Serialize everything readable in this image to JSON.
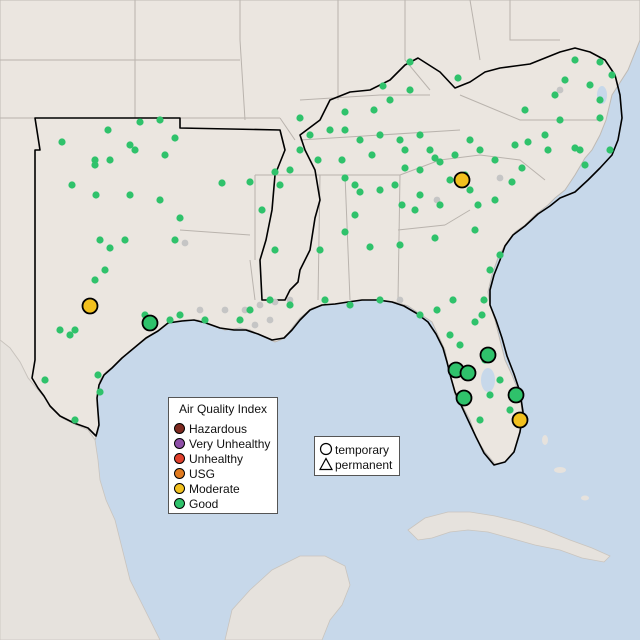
{
  "map": {
    "colors": {
      "water": "#c7d8ea",
      "land": "#ebe6e0",
      "region_outline": "#000000",
      "state_border": "#b9b3ad",
      "other_land": "#e3e0dc"
    }
  },
  "legend_aqi": {
    "title": "Air Quality Index",
    "items": [
      {
        "label": "Hazardous",
        "color": "#7e2a20"
      },
      {
        "label": "Very Unhealthy",
        "color": "#8e4fa8"
      },
      {
        "label": "Unhealthy",
        "color": "#e0402c"
      },
      {
        "label": "USG",
        "color": "#e07a1f"
      },
      {
        "label": "Moderate",
        "color": "#f2c01e"
      },
      {
        "label": "Good",
        "color": "#2fc26b"
      }
    ]
  },
  "legend_type": {
    "items": [
      {
        "label": "temporary",
        "shape": "circle-icon"
      },
      {
        "label": "permanent",
        "shape": "triangle-icon"
      }
    ]
  },
  "sensor_colors": {
    "good": "#2fc26b",
    "moderate": "#f2c01e",
    "no_data": "#c5c5c5"
  }
}
